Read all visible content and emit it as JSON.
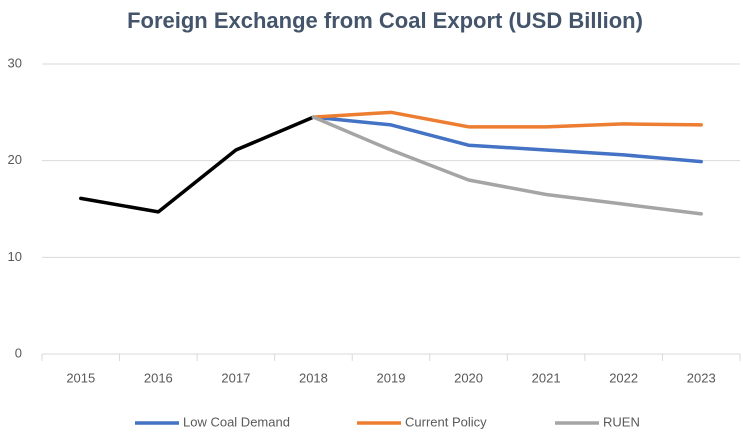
{
  "chart_data": {
    "type": "line",
    "title": "Foreign Exchange from Coal Export (USD Billion)",
    "categories": [
      "2015",
      "2016",
      "2017",
      "2018",
      "2019",
      "2020",
      "2021",
      "2022",
      "2023"
    ],
    "series": [
      {
        "color": "#000000",
        "values": [
          16.1,
          14.7,
          21.1,
          24.5,
          null,
          null,
          null,
          null,
          null
        ]
      },
      {
        "name": "Low Coal Demand",
        "color": "#4472c4",
        "values": [
          null,
          null,
          null,
          24.5,
          23.7,
          21.6,
          21.1,
          20.6,
          19.9
        ]
      },
      {
        "name": "Current Policy",
        "color": "#ed7d31",
        "values": [
          null,
          null,
          null,
          24.5,
          25.0,
          23.5,
          23.5,
          23.8,
          23.7
        ]
      },
      {
        "name": "RUEN",
        "color": "#a5a5a5",
        "values": [
          null,
          null,
          null,
          24.5,
          21.1,
          18.0,
          16.5,
          15.5,
          14.5
        ]
      }
    ],
    "ylim": [
      0,
      30
    ],
    "yticks": [
      0,
      10,
      20,
      30
    ],
    "grid": true,
    "legend": "bottom"
  }
}
